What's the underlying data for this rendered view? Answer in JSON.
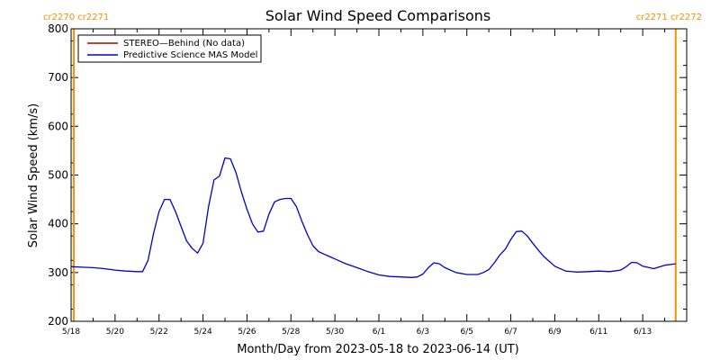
{
  "chart_data": {
    "type": "line",
    "title": "Solar Wind Speed Comparisons",
    "xlabel": "Month/Day from 2023-05-18 to 2023-06-14 (UT)",
    "ylabel": "Solar Wind Speed (km/s)",
    "xlim": [
      "2023-05-18",
      "2023-06-14"
    ],
    "ylim": [
      200,
      800
    ],
    "x_ticks": [
      "5/18",
      "5/20",
      "5/22",
      "5/24",
      "5/26",
      "5/28",
      "5/30",
      "6/1",
      "6/3",
      "6/5",
      "6/7",
      "6/9",
      "6/11",
      "6/13"
    ],
    "y_ticks": [
      "200",
      "300",
      "400",
      "500",
      "600",
      "700",
      "800"
    ],
    "grid": false,
    "legend": {
      "placement": "top-left",
      "entries": [
        {
          "label": "STEREO—Behind (No data)",
          "color": "#b00000"
        },
        {
          "label": "Predictive Science MAS Model",
          "color": "#0000cc"
        }
      ]
    },
    "carrington_markers": [
      {
        "x": "2023-05-18T03:00",
        "color": "#ff8c00",
        "label": "cr2270 cr2271",
        "side": "left"
      },
      {
        "x": "2023-06-14T12:00",
        "color": "#ff8c00",
        "label": "cr2271 cr2272",
        "side": "right"
      }
    ],
    "series": [
      {
        "name": "STEREO—Behind (No data)",
        "color": "#b00000",
        "x": [],
        "y": []
      },
      {
        "name": "Predictive Science MAS Model",
        "color": "#0000cc",
        "x": [
          "2023-05-18T00:00",
          "2023-05-18T12:00",
          "2023-05-19T00:00",
          "2023-05-19T12:00",
          "2023-05-20T00:00",
          "2023-05-20T12:00",
          "2023-05-21T00:00",
          "2023-05-21T06:00",
          "2023-05-21T12:00",
          "2023-05-21T18:00",
          "2023-05-22T00:00",
          "2023-05-22T06:00",
          "2023-05-22T12:00",
          "2023-05-22T18:00",
          "2023-05-23T00:00",
          "2023-05-23T06:00",
          "2023-05-23T12:00",
          "2023-05-23T18:00",
          "2023-05-24T00:00",
          "2023-05-24T06:00",
          "2023-05-24T12:00",
          "2023-05-24T18:00",
          "2023-05-25T00:00",
          "2023-05-25T06:00",
          "2023-05-25T12:00",
          "2023-05-25T18:00",
          "2023-05-26T00:00",
          "2023-05-26T06:00",
          "2023-05-26T12:00",
          "2023-05-26T18:00",
          "2023-05-27T00:00",
          "2023-05-27T06:00",
          "2023-05-27T12:00",
          "2023-05-27T18:00",
          "2023-05-28T00:00",
          "2023-05-28T06:00",
          "2023-05-28T12:00",
          "2023-05-28T18:00",
          "2023-05-29T00:00",
          "2023-05-29T06:00",
          "2023-05-29T12:00",
          "2023-05-29T18:00",
          "2023-05-30T00:00",
          "2023-05-30T12:00",
          "2023-05-31T00:00",
          "2023-05-31T12:00",
          "2023-06-01T00:00",
          "2023-06-01T12:00",
          "2023-06-02T00:00",
          "2023-06-02T12:00",
          "2023-06-02T18:00",
          "2023-06-03T00:00",
          "2023-06-03T06:00",
          "2023-06-03T12:00",
          "2023-06-03T18:00",
          "2023-06-04T00:00",
          "2023-06-04T12:00",
          "2023-06-05T00:00",
          "2023-06-05T12:00",
          "2023-06-05T18:00",
          "2023-06-06T00:00",
          "2023-06-06T06:00",
          "2023-06-06T12:00",
          "2023-06-06T18:00",
          "2023-06-07T00:00",
          "2023-06-07T06:00",
          "2023-06-07T12:00",
          "2023-06-07T18:00",
          "2023-06-08T00:00",
          "2023-06-08T06:00",
          "2023-06-08T12:00",
          "2023-06-08T18:00",
          "2023-06-09T00:00",
          "2023-06-09T12:00",
          "2023-06-10T00:00",
          "2023-06-10T12:00",
          "2023-06-11T00:00",
          "2023-06-11T12:00",
          "2023-06-12T00:00",
          "2023-06-12T06:00",
          "2023-06-12T12:00",
          "2023-06-12T18:00",
          "2023-06-13T00:00",
          "2023-06-13T12:00",
          "2023-06-14T00:00",
          "2023-06-14T12:00"
        ],
        "y": [
          312,
          311,
          310,
          308,
          305,
          303,
          302,
          302,
          325,
          380,
          425,
          450,
          450,
          425,
          395,
          365,
          350,
          340,
          360,
          435,
          490,
          498,
          535,
          533,
          505,
          465,
          430,
          400,
          383,
          385,
          420,
          445,
          450,
          452,
          452,
          435,
          405,
          378,
          355,
          343,
          338,
          333,
          328,
          318,
          310,
          302,
          295,
          292,
          291,
          290,
          291,
          297,
          310,
          320,
          318,
          310,
          300,
          296,
          296,
          300,
          306,
          320,
          336,
          348,
          368,
          384,
          385,
          375,
          360,
          346,
          333,
          323,
          313,
          303,
          301,
          302,
          303,
          302,
          305,
          312,
          321,
          320,
          313,
          308,
          315,
          318
        ]
      }
    ]
  }
}
